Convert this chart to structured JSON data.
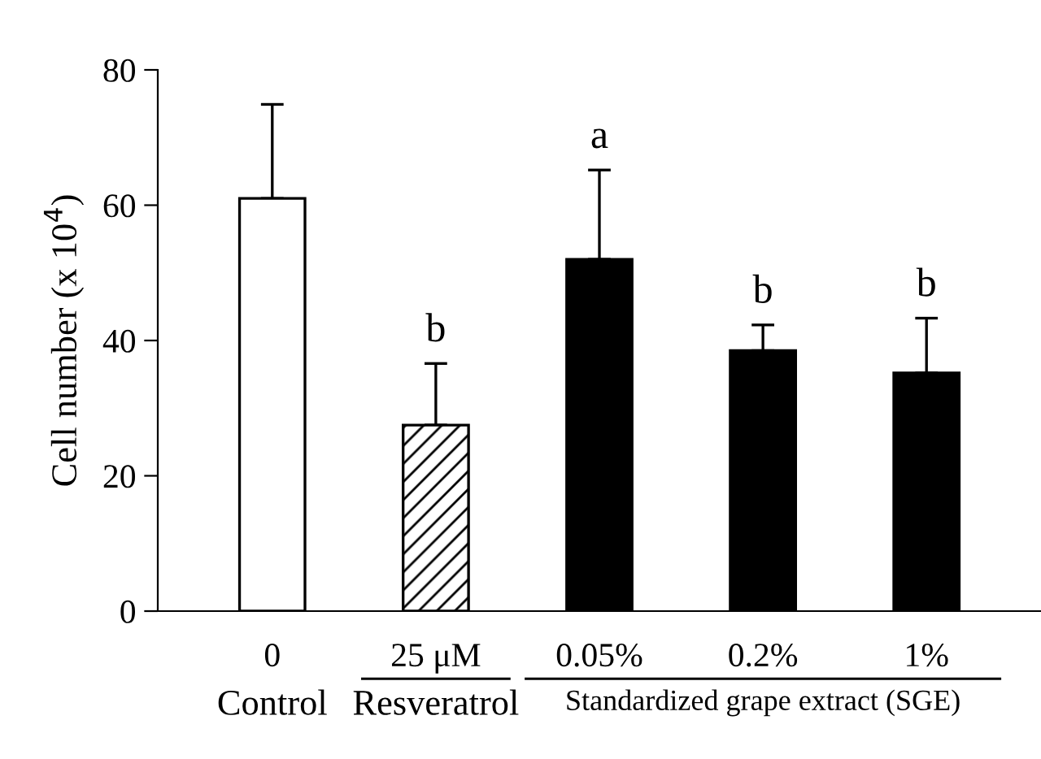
{
  "chart_data": {
    "type": "bar",
    "ylabel": "Cell number (x 10$^{4}$)",
    "categories": [
      "0",
      "25 μM",
      "0.05%",
      "0.2%",
      "1%"
    ],
    "values": [
      61.0,
      27.5,
      52.0,
      38.5,
      35.2
    ],
    "errors": [
      [
        61.0,
        74.9
      ],
      [
        27.5,
        36.6
      ],
      [
        52.0,
        65.2
      ],
      [
        38.5,
        42.3
      ],
      [
        35.2,
        43.3
      ]
    ],
    "colors": [
      "#ffffff",
      "#ffffff",
      "#000000",
      "#000000",
      "#000000"
    ],
    "ylim": [
      0,
      80
    ],
    "yticks": [
      0,
      20,
      40,
      60,
      80
    ],
    "grid": false,
    "legend": false,
    "annotations": [
      {
        "text": "b",
        "x": "25 μM",
        "y": 36.6
      },
      {
        "text": "a",
        "x": "0.05%",
        "y": 65.2
      },
      {
        "text": "b",
        "x": "0.2%",
        "y": 42.3
      },
      {
        "text": "b",
        "x": "1%",
        "y": 43.3
      },
      "Control",
      "Resveratrol",
      "Standardized grape extract (SGE)"
    ]
  }
}
